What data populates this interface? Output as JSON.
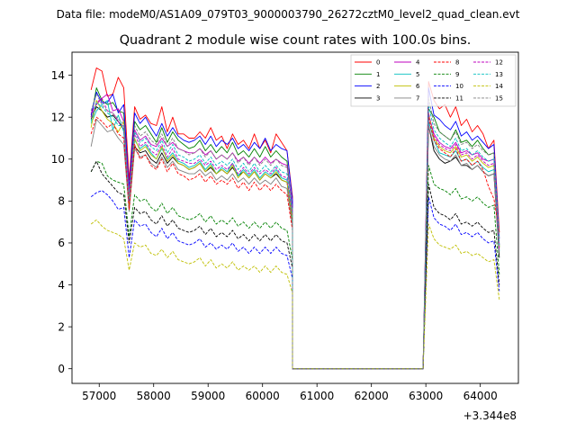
{
  "figure": {
    "suptitle": "Data file: modeM0/AS1A09_079T03_9000003790_26272cztM0_level2_quad_clean.evt",
    "title": "Quadrant 2 module wise count rates with 100.0s bins."
  },
  "chart_data": {
    "type": "line",
    "title": "Quadrant 2 module wise count rates with 100.0s bins.",
    "xlabel": "",
    "ylabel": "",
    "offset_text": "+3.344e8",
    "x_offset": 334400000,
    "xlim": [
      56500,
      64700
    ],
    "ylim": [
      -0.7,
      15.1
    ],
    "x_ticks": [
      57000,
      58000,
      59000,
      60000,
      61000,
      62000,
      63000,
      64000
    ],
    "x_tick_labels": [
      "57000",
      "58000",
      "59000",
      "60000",
      "61000",
      "62000",
      "63000",
      "64000"
    ],
    "y_ticks": [
      0,
      2,
      4,
      6,
      8,
      10,
      12,
      14
    ],
    "y_tick_labels": [
      "0",
      "2",
      "4",
      "6",
      "8",
      "10",
      "12",
      "14"
    ],
    "legend_position": "top-right",
    "grid": false,
    "bin_seconds": 100,
    "segments": [
      {
        "x_start": 56850,
        "x_step": 100,
        "points": 38
      },
      {
        "x_start": 60550,
        "x_step": 100,
        "points": 25
      },
      {
        "x_start": 63050,
        "x_step": 100,
        "points": 14
      }
    ],
    "series": [
      {
        "name": "0",
        "color": "#ff0000",
        "dashed": false,
        "level": 12.45,
        "seg1": [
          13.3,
          14.35,
          14.2,
          13.0,
          13.1,
          13.9,
          13.4,
          9.0,
          12.5,
          11.9,
          12.1,
          11.7,
          11.6,
          12.5,
          11.3,
          12.0,
          11.2,
          11.2,
          11.0,
          11.0,
          11.3,
          11.0,
          11.5,
          10.9,
          11.1,
          10.5,
          11.2,
          10.7,
          10.9,
          10.5,
          11.2,
          10.5,
          10.9,
          10.3,
          11.2,
          10.8,
          10.4,
          8.2
        ],
        "seg3": [
          13.7,
          12.8,
          12.4,
          12.6,
          12.0,
          12.5,
          11.6,
          11.9,
          11.3,
          11.6,
          11.2,
          10.5,
          10.9,
          6.5
        ]
      },
      {
        "name": "1",
        "color": "#008000",
        "dashed": false,
        "level": 11.85,
        "seg1": [
          12.0,
          13.4,
          12.8,
          12.6,
          12.7,
          12.3,
          12.2,
          8.3,
          11.8,
          11.4,
          11.6,
          11.2,
          10.8,
          11.5,
          10.8,
          11.3,
          10.9,
          10.7,
          10.5,
          10.6,
          10.9,
          10.4,
          10.7,
          10.3,
          10.6,
          10.3,
          10.8,
          10.2,
          10.4,
          10.1,
          10.5,
          10.1,
          10.6,
          10.1,
          10.4,
          10.1,
          9.9,
          7.5
        ],
        "seg3": [
          12.4,
          12.0,
          11.3,
          11.1,
          10.9,
          11.4,
          10.8,
          10.9,
          10.6,
          10.9,
          10.5,
          10.2,
          10.3,
          5.8
        ]
      },
      {
        "name": "2",
        "color": "#0000ff",
        "dashed": false,
        "level": 12.15,
        "seg1": [
          12.1,
          13.2,
          12.7,
          12.7,
          13.1,
          12.2,
          12.6,
          8.6,
          12.2,
          11.7,
          12.0,
          11.5,
          11.1,
          11.7,
          11.1,
          11.5,
          11.1,
          10.9,
          10.8,
          10.9,
          11.1,
          10.7,
          11.1,
          10.6,
          10.9,
          10.7,
          11.0,
          10.5,
          10.7,
          10.4,
          10.8,
          10.5,
          11.0,
          10.4,
          10.7,
          10.5,
          10.4,
          8.0
        ],
        "seg3": [
          13.4,
          12.1,
          11.9,
          11.6,
          11.4,
          11.8,
          11.1,
          11.3,
          10.9,
          11.1,
          10.8,
          10.5,
          10.7,
          6.2
        ]
      },
      {
        "name": "3",
        "color": "#000000",
        "dashed": false,
        "level": 10.2,
        "seg1": [
          11.9,
          12.5,
          12.3,
          12.0,
          12.1,
          11.8,
          11.4,
          7.6,
          10.6,
          10.3,
          10.4,
          10.0,
          9.8,
          10.3,
          9.8,
          10.1,
          9.8,
          9.7,
          9.5,
          9.6,
          9.8,
          9.4,
          9.6,
          9.3,
          9.5,
          9.3,
          9.6,
          9.2,
          9.4,
          9.1,
          9.4,
          9.0,
          9.3,
          9.1,
          9.3,
          9.0,
          8.9,
          7.0
        ],
        "seg3": [
          11.6,
          10.4,
          10.0,
          9.8,
          9.9,
          10.1,
          9.7,
          9.7,
          9.5,
          9.7,
          9.4,
          9.2,
          9.3,
          5.3
        ]
      },
      {
        "name": "4",
        "color": "#bf00bf",
        "dashed": false,
        "level": 11.1,
        "seg1": [
          12.2,
          12.6,
          12.9,
          13.1,
          12.3,
          12.4,
          11.8,
          8.4,
          11.4,
          10.9,
          11.1,
          10.7,
          10.6,
          11.0,
          10.6,
          10.8,
          10.5,
          10.4,
          10.3,
          10.3,
          10.5,
          10.2,
          10.4,
          10.0,
          10.2,
          10.0,
          10.3,
          9.9,
          10.1,
          9.8,
          10.1,
          9.8,
          10.1,
          9.8,
          10.0,
          9.8,
          9.7,
          7.6
        ],
        "seg3": [
          12.1,
          11.2,
          10.8,
          10.6,
          10.5,
          10.8,
          10.3,
          10.4,
          10.2,
          10.3,
          10.0,
          9.9,
          10.0,
          5.9
        ]
      },
      {
        "name": "5",
        "color": "#00bfbf",
        "dashed": false,
        "level": 10.6,
        "seg1": [
          11.7,
          12.3,
          12.6,
          12.8,
          11.4,
          12.1,
          11.3,
          7.9,
          10.9,
          10.5,
          10.7,
          10.3,
          10.0,
          10.5,
          10.0,
          10.3,
          9.9,
          9.8,
          9.6,
          9.7,
          9.9,
          9.5,
          9.8,
          9.3,
          9.6,
          9.4,
          9.8,
          9.2,
          9.5,
          9.2,
          9.5,
          9.1,
          9.4,
          9.2,
          9.5,
          9.1,
          9.0,
          7.2
        ],
        "seg3": [
          11.8,
          10.9,
          10.3,
          10.2,
          10.1,
          10.4,
          9.9,
          10.0,
          9.7,
          9.9,
          9.6,
          9.4,
          9.5,
          5.6
        ]
      },
      {
        "name": "6",
        "color": "#bfbf00",
        "dashed": false,
        "level": 10.85,
        "seg1": [
          11.5,
          12.8,
          12.3,
          11.9,
          11.7,
          11.3,
          11.8,
          7.8,
          11.0,
          10.4,
          10.6,
          10.2,
          10.0,
          10.6,
          9.9,
          10.2,
          9.8,
          9.7,
          9.5,
          9.6,
          9.8,
          9.4,
          9.7,
          9.3,
          9.5,
          9.3,
          9.7,
          9.1,
          9.4,
          9.1,
          9.4,
          9.0,
          9.3,
          9.1,
          9.4,
          9.0,
          8.9,
          7.1
        ],
        "seg3": [
          12.2,
          11.0,
          10.6,
          10.4,
          10.3,
          10.6,
          10.1,
          10.2,
          9.9,
          10.1,
          9.8,
          9.6,
          9.7,
          5.8
        ]
      },
      {
        "name": "7",
        "color": "#808080",
        "dashed": false,
        "level": 10.4,
        "seg1": [
          10.6,
          11.9,
          11.6,
          11.3,
          11.4,
          11.0,
          10.7,
          7.5,
          10.5,
          10.1,
          10.2,
          9.8,
          9.6,
          10.1,
          9.6,
          9.9,
          9.5,
          9.4,
          9.3,
          9.3,
          9.5,
          9.2,
          9.4,
          9.0,
          9.2,
          9.0,
          9.3,
          8.9,
          9.1,
          8.8,
          9.1,
          8.8,
          9.0,
          8.8,
          9.1,
          8.7,
          8.6,
          6.8
        ],
        "seg3": [
          11.6,
          10.6,
          10.2,
          10.0,
          9.9,
          10.2,
          9.7,
          9.8,
          9.5,
          9.7,
          9.4,
          9.2,
          9.3,
          5.5
        ]
      },
      {
        "name": "8",
        "color": "#ff0000",
        "dashed": true,
        "level": 10.8,
        "seg1": [
          11.2,
          12.0,
          11.8,
          11.5,
          11.7,
          11.2,
          11.0,
          7.6,
          10.7,
          10.0,
          10.2,
          9.7,
          9.5,
          10.0,
          9.4,
          9.8,
          9.3,
          9.2,
          9.0,
          9.1,
          9.3,
          8.9,
          9.2,
          8.8,
          9.0,
          8.8,
          9.1,
          8.6,
          8.9,
          8.5,
          8.9,
          8.5,
          8.8,
          8.5,
          8.8,
          8.5,
          8.3,
          6.6
        ],
        "seg3": [
          12.0,
          10.9,
          10.5,
          10.3,
          10.1,
          10.5,
          9.9,
          10.0,
          9.7,
          9.9,
          9.5,
          8.7,
          8.1,
          6.5
        ]
      },
      {
        "name": "9",
        "color": "#008000",
        "dashed": true,
        "level": 8.7,
        "seg1": [
          9.4,
          9.9,
          9.8,
          9.2,
          9.0,
          8.9,
          8.8,
          6.3,
          8.3,
          8.0,
          8.1,
          7.7,
          7.5,
          7.9,
          7.4,
          7.7,
          7.3,
          7.2,
          7.1,
          7.2,
          7.4,
          7.0,
          7.3,
          6.9,
          7.1,
          6.9,
          7.2,
          6.8,
          7.0,
          6.7,
          7.0,
          6.7,
          7.0,
          6.7,
          7.0,
          6.7,
          6.6,
          5.2
        ],
        "seg3": [
          9.7,
          8.8,
          8.6,
          8.5,
          8.3,
          8.6,
          8.1,
          8.2,
          8.0,
          8.2,
          7.9,
          7.7,
          7.8,
          4.5
        ]
      },
      {
        "name": "10",
        "color": "#0000ff",
        "dashed": true,
        "level": 7.1,
        "seg1": [
          8.2,
          8.4,
          8.5,
          8.3,
          8.0,
          7.6,
          7.7,
          5.3,
          7.1,
          6.8,
          6.9,
          6.5,
          6.3,
          6.7,
          6.2,
          6.5,
          6.1,
          6.0,
          5.9,
          6.0,
          6.2,
          5.8,
          6.0,
          5.7,
          5.9,
          5.7,
          6.0,
          5.6,
          5.8,
          5.5,
          5.8,
          5.5,
          5.8,
          5.5,
          5.8,
          5.5,
          5.4,
          4.3
        ],
        "seg3": [
          8.2,
          7.2,
          6.9,
          6.8,
          6.6,
          6.9,
          6.4,
          6.5,
          6.3,
          6.5,
          6.2,
          6.0,
          6.1,
          3.7
        ]
      },
      {
        "name": "11",
        "color": "#000000",
        "dashed": true,
        "level": 7.6,
        "seg1": [
          9.4,
          9.9,
          9.3,
          9.0,
          8.7,
          8.4,
          8.3,
          6.0,
          7.7,
          7.4,
          7.5,
          7.1,
          6.9,
          7.3,
          6.8,
          7.1,
          6.7,
          6.6,
          6.5,
          6.6,
          6.8,
          6.4,
          6.7,
          6.3,
          6.5,
          6.3,
          6.6,
          6.2,
          6.4,
          6.1,
          6.4,
          6.1,
          6.4,
          6.1,
          6.4,
          6.1,
          6.0,
          4.8
        ],
        "seg3": [
          8.8,
          7.7,
          7.4,
          7.3,
          7.1,
          7.4,
          6.9,
          7.0,
          6.8,
          7.0,
          6.7,
          6.5,
          6.6,
          4.0
        ]
      },
      {
        "name": "12",
        "color": "#bf00bf",
        "dashed": true,
        "level": 11.0,
        "seg1": [
          12.0,
          12.7,
          12.9,
          12.3,
          12.2,
          11.8,
          11.5,
          8.0,
          11.2,
          10.6,
          10.8,
          10.4,
          10.2,
          10.7,
          10.1,
          10.5,
          10.0,
          9.9,
          9.8,
          9.8,
          10.0,
          9.7,
          9.9,
          9.5,
          9.7,
          9.5,
          9.8,
          9.3,
          9.6,
          9.3,
          9.6,
          9.3,
          9.5,
          9.3,
          9.6,
          9.2,
          9.1,
          7.3
        ],
        "seg3": [
          12.2,
          11.1,
          10.7,
          10.5,
          10.4,
          10.7,
          10.2,
          10.3,
          10.0,
          10.2,
          9.9,
          9.7,
          9.8,
          5.7
        ]
      },
      {
        "name": "13",
        "color": "#00bfbf",
        "dashed": true,
        "level": 11.3,
        "seg1": [
          11.8,
          12.7,
          12.5,
          12.2,
          12.0,
          11.6,
          11.6,
          8.1,
          11.3,
          10.8,
          11.0,
          10.6,
          10.4,
          10.9,
          10.3,
          10.7,
          10.2,
          10.1,
          9.9,
          10.0,
          10.2,
          9.8,
          10.1,
          9.7,
          9.9,
          9.7,
          10.0,
          9.5,
          9.8,
          9.4,
          9.8,
          9.4,
          9.7,
          9.4,
          9.7,
          9.4,
          9.3,
          7.4
        ],
        "seg3": [
          12.6,
          11.4,
          11.0,
          10.8,
          10.6,
          11.0,
          10.4,
          10.5,
          10.2,
          10.4,
          10.1,
          9.9,
          10.0,
          5.9
        ]
      },
      {
        "name": "14",
        "color": "#bfbf00",
        "dashed": true,
        "level": 6.1,
        "seg1": [
          6.9,
          7.1,
          6.8,
          6.6,
          6.5,
          6.4,
          6.2,
          4.7,
          6.0,
          5.8,
          5.9,
          5.5,
          5.4,
          5.7,
          5.3,
          5.6,
          5.2,
          5.1,
          5.0,
          5.1,
          5.3,
          4.9,
          5.2,
          4.8,
          5.0,
          4.8,
          5.1,
          4.7,
          4.9,
          4.7,
          4.9,
          4.6,
          4.9,
          4.6,
          4.9,
          4.6,
          4.5,
          3.6
        ],
        "seg3": [
          6.9,
          6.2,
          5.9,
          5.8,
          5.7,
          5.9,
          5.5,
          5.6,
          5.4,
          5.5,
          5.3,
          5.1,
          5.2,
          3.3
        ]
      },
      {
        "name": "15",
        "color": "#808080",
        "dashed": true,
        "level": 11.6,
        "seg1": [
          12.3,
          13.1,
          12.6,
          12.3,
          12.2,
          11.9,
          11.7,
          8.2,
          11.6,
          11.1,
          11.3,
          10.9,
          10.7,
          11.2,
          10.6,
          11.0,
          10.5,
          10.4,
          10.2,
          10.3,
          10.5,
          10.1,
          10.4,
          10.0,
          10.2,
          10.0,
          10.3,
          9.8,
          10.1,
          9.7,
          10.1,
          9.7,
          10.0,
          9.7,
          10.0,
          9.7,
          9.6,
          7.6
        ],
        "seg3": [
          12.9,
          11.7,
          11.3,
          11.1,
          10.9,
          11.3,
          10.7,
          10.8,
          10.5,
          10.7,
          10.4,
          10.2,
          10.3,
          6.1
        ]
      }
    ]
  }
}
